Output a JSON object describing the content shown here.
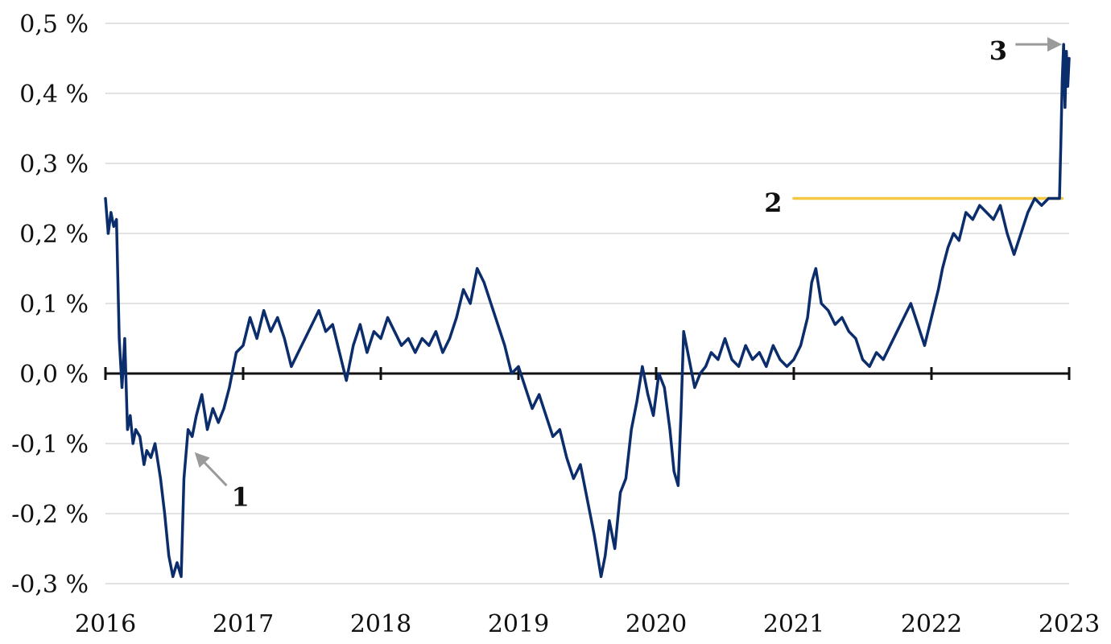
{
  "chart_data": {
    "type": "line",
    "title": "",
    "xlabel": "",
    "ylabel": "",
    "xlim": [
      2016.0,
      2023.0
    ],
    "ylim": [
      -0.3,
      0.5
    ],
    "grid": true,
    "legend": "none",
    "x_ticks": [
      {
        "value": 2016,
        "label": "2016"
      },
      {
        "value": 2017,
        "label": "2017"
      },
      {
        "value": 2018,
        "label": "2018"
      },
      {
        "value": 2019,
        "label": "2019"
      },
      {
        "value": 2020,
        "label": "2020"
      },
      {
        "value": 2021,
        "label": "2021"
      },
      {
        "value": 2022,
        "label": "2022"
      },
      {
        "value": 2023,
        "label": "2023"
      }
    ],
    "y_ticks": [
      {
        "value": 0.5,
        "label": "0,5 %"
      },
      {
        "value": 0.4,
        "label": "0,4 %"
      },
      {
        "value": 0.3,
        "label": "0,3 %"
      },
      {
        "value": 0.2,
        "label": "0,2 %"
      },
      {
        "value": 0.1,
        "label": "0,1 %"
      },
      {
        "value": 0.0,
        "label": "0,0 %"
      },
      {
        "value": -0.1,
        "label": "-0,1 %"
      },
      {
        "value": -0.2,
        "label": "-0,2 %"
      },
      {
        "value": -0.3,
        "label": "-0,3 %"
      }
    ],
    "series": [
      {
        "name": "series",
        "color": "#0c2d6b",
        "x": [
          2016.0,
          2016.02,
          2016.04,
          2016.06,
          2016.08,
          2016.1,
          2016.12,
          2016.14,
          2016.16,
          2016.18,
          2016.2,
          2016.22,
          2016.25,
          2016.28,
          2016.3,
          2016.33,
          2016.36,
          2016.4,
          2016.43,
          2016.46,
          2016.49,
          2016.52,
          2016.55,
          2016.57,
          2016.6,
          2016.63,
          2016.66,
          2016.7,
          2016.74,
          2016.78,
          2016.82,
          2016.86,
          2016.9,
          2016.95,
          2017.0,
          2017.05,
          2017.1,
          2017.15,
          2017.2,
          2017.25,
          2017.3,
          2017.35,
          2017.4,
          2017.45,
          2017.5,
          2017.55,
          2017.6,
          2017.65,
          2017.7,
          2017.75,
          2017.8,
          2017.85,
          2017.9,
          2017.95,
          2018.0,
          2018.05,
          2018.1,
          2018.15,
          2018.2,
          2018.25,
          2018.3,
          2018.35,
          2018.4,
          2018.45,
          2018.5,
          2018.55,
          2018.6,
          2018.65,
          2018.7,
          2018.75,
          2018.8,
          2018.85,
          2018.9,
          2018.95,
          2019.0,
          2019.05,
          2019.1,
          2019.15,
          2019.2,
          2019.25,
          2019.3,
          2019.35,
          2019.4,
          2019.45,
          2019.5,
          2019.55,
          2019.6,
          2019.63,
          2019.66,
          2019.7,
          2019.74,
          2019.78,
          2019.82,
          2019.86,
          2019.9,
          2019.94,
          2019.98,
          2020.02,
          2020.06,
          2020.1,
          2020.13,
          2020.16,
          2020.18,
          2020.2,
          2020.24,
          2020.28,
          2020.32,
          2020.36,
          2020.4,
          2020.45,
          2020.5,
          2020.55,
          2020.6,
          2020.65,
          2020.7,
          2020.75,
          2020.8,
          2020.85,
          2020.9,
          2020.95,
          2021.0,
          2021.05,
          2021.1,
          2021.13,
          2021.16,
          2021.2,
          2021.25,
          2021.3,
          2021.35,
          2021.4,
          2021.45,
          2021.5,
          2021.55,
          2021.6,
          2021.65,
          2021.7,
          2021.75,
          2021.8,
          2021.85,
          2021.9,
          2021.95,
          2022.0,
          2022.05,
          2022.08,
          2022.12,
          2022.16,
          2022.2,
          2022.25,
          2022.3,
          2022.35,
          2022.4,
          2022.45,
          2022.5,
          2022.55,
          2022.6,
          2022.65,
          2022.7,
          2022.75,
          2022.8,
          2022.85,
          2022.9,
          2022.93,
          2022.94,
          2022.95,
          2022.96,
          2022.97,
          2022.98,
          2022.99,
          2023.0
        ],
        "values": [
          0.25,
          0.2,
          0.23,
          0.21,
          0.22,
          0.05,
          -0.02,
          0.05,
          -0.08,
          -0.06,
          -0.1,
          -0.08,
          -0.09,
          -0.13,
          -0.11,
          -0.12,
          -0.1,
          -0.15,
          -0.2,
          -0.26,
          -0.29,
          -0.27,
          -0.29,
          -0.15,
          -0.08,
          -0.09,
          -0.06,
          -0.03,
          -0.08,
          -0.05,
          -0.07,
          -0.05,
          -0.02,
          0.03,
          0.04,
          0.08,
          0.05,
          0.09,
          0.06,
          0.08,
          0.05,
          0.01,
          0.03,
          0.05,
          0.07,
          0.09,
          0.06,
          0.07,
          0.03,
          -0.01,
          0.04,
          0.07,
          0.03,
          0.06,
          0.05,
          0.08,
          0.06,
          0.04,
          0.05,
          0.03,
          0.05,
          0.04,
          0.06,
          0.03,
          0.05,
          0.08,
          0.12,
          0.1,
          0.15,
          0.13,
          0.1,
          0.07,
          0.04,
          0.0,
          0.01,
          -0.02,
          -0.05,
          -0.03,
          -0.06,
          -0.09,
          -0.08,
          -0.12,
          -0.15,
          -0.13,
          -0.18,
          -0.23,
          -0.29,
          -0.26,
          -0.21,
          -0.25,
          -0.17,
          -0.15,
          -0.08,
          -0.04,
          0.01,
          -0.03,
          -0.06,
          0.0,
          -0.02,
          -0.08,
          -0.14,
          -0.16,
          -0.06,
          0.06,
          0.02,
          -0.02,
          0.0,
          0.01,
          0.03,
          0.02,
          0.05,
          0.02,
          0.01,
          0.04,
          0.02,
          0.03,
          0.01,
          0.04,
          0.02,
          0.01,
          0.02,
          0.04,
          0.08,
          0.13,
          0.15,
          0.1,
          0.09,
          0.07,
          0.08,
          0.06,
          0.05,
          0.02,
          0.01,
          0.03,
          0.02,
          0.04,
          0.06,
          0.08,
          0.1,
          0.07,
          0.04,
          0.08,
          0.12,
          0.15,
          0.18,
          0.2,
          0.19,
          0.23,
          0.22,
          0.24,
          0.23,
          0.22,
          0.24,
          0.2,
          0.17,
          0.2,
          0.23,
          0.25,
          0.24,
          0.25,
          0.25,
          0.25,
          0.33,
          0.42,
          0.47,
          0.38,
          0.46,
          0.41,
          0.45
        ]
      },
      {
        "name": "threshold",
        "color": "#f5c842",
        "x": [
          2021.0,
          2022.95
        ],
        "values": [
          0.25,
          0.25
        ]
      }
    ],
    "annotations": [
      {
        "label": "1",
        "arrow_from": [
          2016.88,
          -0.16
        ],
        "arrow_to": [
          2016.66,
          -0.115
        ],
        "text_at": [
          2016.98,
          -0.175
        ],
        "anchor": "middle"
      },
      {
        "label": "2",
        "text_at": [
          2020.85,
          0.245
        ],
        "anchor": "middle"
      },
      {
        "label": "3",
        "arrow_from": [
          2022.61,
          0.47
        ],
        "arrow_to": [
          2022.93,
          0.47
        ],
        "text_at": [
          2022.55,
          0.462
        ],
        "anchor": "end"
      }
    ]
  }
}
